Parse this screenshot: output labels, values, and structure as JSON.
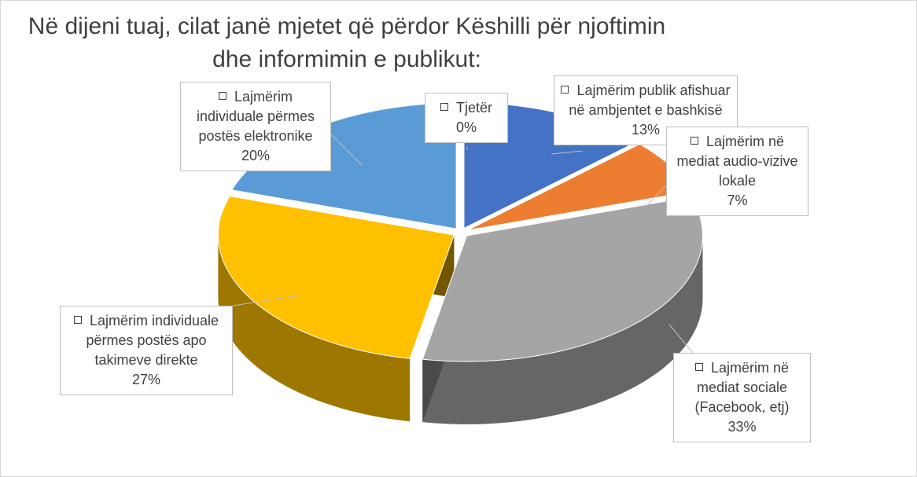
{
  "chart_data": {
    "type": "pie",
    "title": "Në dijeni tuaj, cilat janë mjetet që përdor Këshilli për njoftimin dhe informimin e publikut:",
    "categories": [
      "Tjetër",
      "Lajmërim publik afishuar në ambjentet e bashkisë",
      "Lajmërim në mediat audio-vizive lokale",
      "Lajmërim në mediat sociale (Facebook, etj)",
      "Lajmërim individuale përmes postës apo takimeve direkte",
      "Lajmërim individuale përmes postës elektronike"
    ],
    "values": [
      0,
      13,
      7,
      33,
      27,
      20
    ],
    "value_labels": [
      "0%",
      "13%",
      "7%",
      "33%",
      "27%",
      "20%"
    ],
    "colors": [
      "#70ad47",
      "#4472c4",
      "#ed7d31",
      "#a5a5a5",
      "#ffc000",
      "#5b9bd5"
    ]
  }
}
